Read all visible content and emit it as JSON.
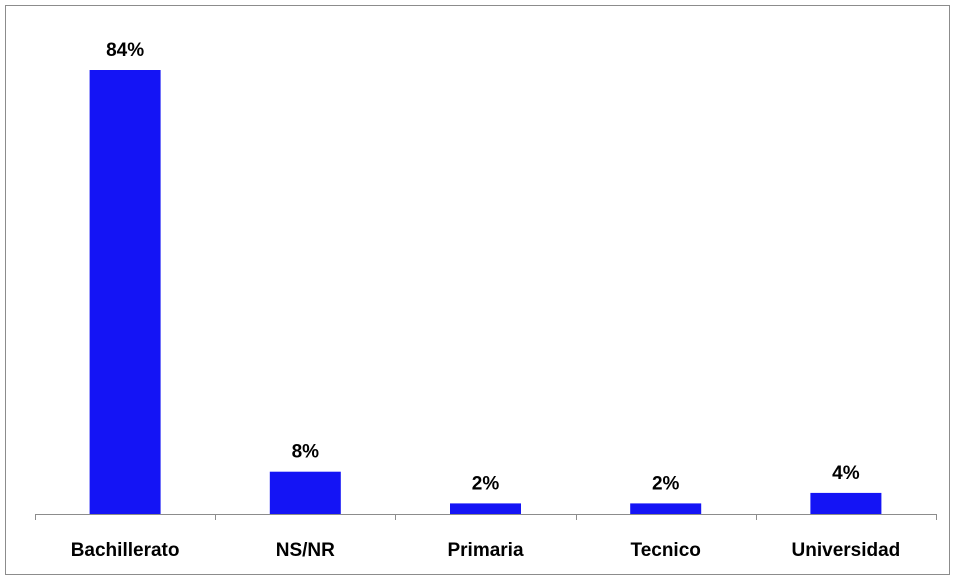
{
  "chart_data": {
    "type": "bar",
    "categories": [
      "Bachillerato",
      "NS/NR",
      "Primaria",
      "Tecnico",
      "Universidad"
    ],
    "values": [
      84,
      8,
      2,
      2,
      4
    ],
    "data_labels": [
      "84%",
      "8%",
      "2%",
      "2%",
      "4%"
    ],
    "title": "",
    "xlabel": "",
    "ylabel": "",
    "ylim": [
      0,
      90
    ],
    "unit": "%",
    "grid": false,
    "legend": "none",
    "bar_color": "#1414f5"
  }
}
